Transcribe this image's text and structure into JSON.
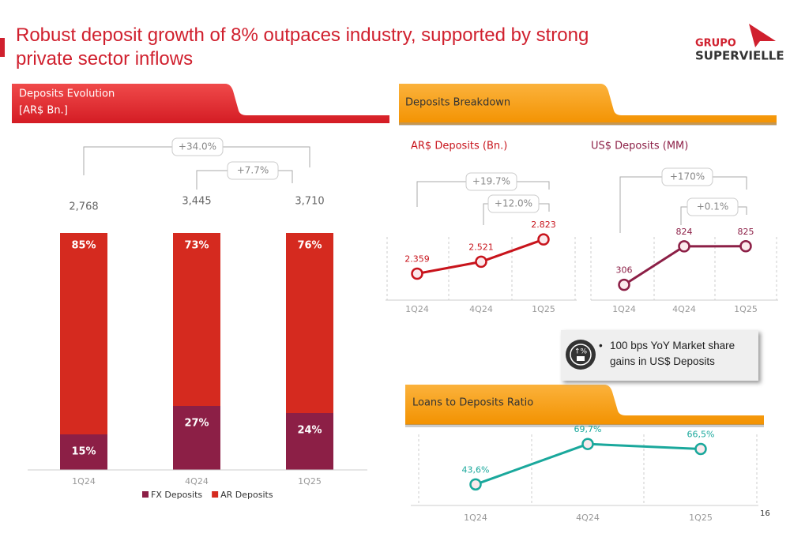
{
  "title": "Robust deposit growth of 8% outpaces industry, supported by strong private sector inflows",
  "logo": {
    "line1": "GRUPO",
    "line2": "SUPERVIELLE"
  },
  "breakdown_header": "Deposits Breakdown",
  "callout": "100 bps YoY Market share gains in US$ Deposits",
  "page_number": "16",
  "chart_data": [
    {
      "type": "bar",
      "stacked": true,
      "title": "Deposits Evolution",
      "subtitle": "[AR$ Bn.]",
      "categories": [
        "1Q24",
        "4Q24",
        "1Q25"
      ],
      "series": [
        {
          "name": "FX Deposits",
          "color": "#8c1f46",
          "values": [
            15,
            27,
            24
          ],
          "value_labels": [
            "15%",
            "27%",
            "24%"
          ]
        },
        {
          "name": "AR Deposits",
          "color": "#d52a1f",
          "values": [
            85,
            73,
            76
          ],
          "value_labels": [
            "85%",
            "73%",
            "76%"
          ]
        }
      ],
      "totals": {
        "values": [
          2768,
          3445,
          3710
        ],
        "value_labels": [
          "2,768",
          "3,445",
          "3,710"
        ]
      },
      "annotations": [
        "+34.0%",
        "+7.7%"
      ],
      "ylim": [
        0,
        100
      ],
      "legend": "bottom"
    },
    {
      "type": "line",
      "title": "AR$ Deposits (Bn.)",
      "categories": [
        "1Q24",
        "4Q24",
        "1Q25"
      ],
      "values": [
        2.359,
        2.521,
        2.823
      ],
      "color": "#c8141c",
      "annotations": [
        "+19.7%",
        "+12.0%"
      ],
      "ylim": [
        2.0,
        2.9
      ]
    },
    {
      "type": "line",
      "title": "US$ Deposits (MM)",
      "categories": [
        "1Q24",
        "4Q24",
        "1Q25"
      ],
      "values": [
        306,
        824,
        825
      ],
      "color": "#8c1f46",
      "annotations": [
        "+170%",
        "+0.1%"
      ],
      "ylim": [
        100,
        950
      ]
    },
    {
      "type": "line",
      "title": "Loans to Deposits Ratio",
      "categories": [
        "1Q24",
        "4Q24",
        "1Q25"
      ],
      "values": [
        43.6,
        69.7,
        66.5
      ],
      "value_labels": [
        "43,6%",
        "69,7%",
        "66,5%"
      ],
      "color": "#1aa89c",
      "ylim": [
        30,
        80
      ]
    }
  ]
}
